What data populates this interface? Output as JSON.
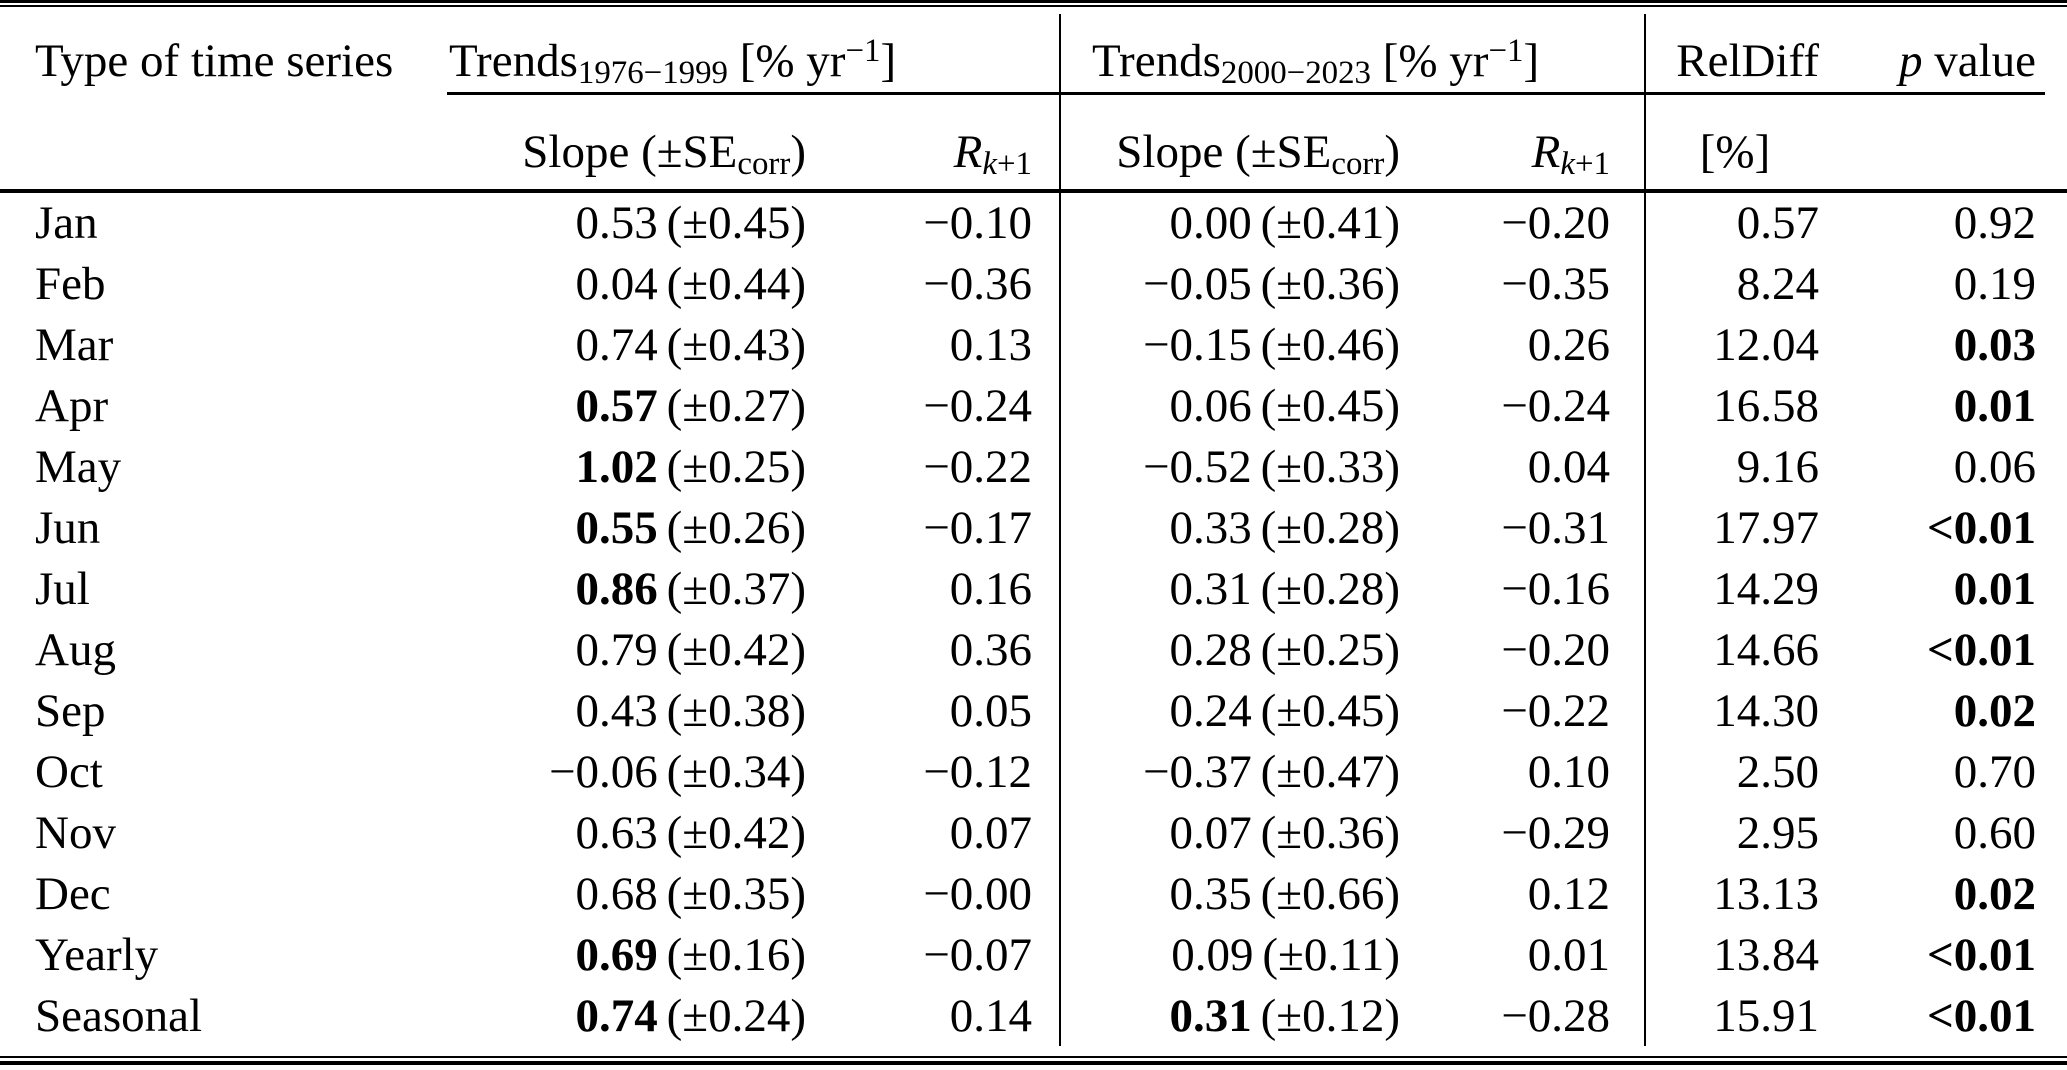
{
  "colors": {
    "text": "#000000",
    "background": "#ffffff",
    "rule": "#000000"
  },
  "header": {
    "type_col": "Type of time series",
    "group1": {
      "name": "Trends",
      "range": "1976−1999",
      "unit_pre": " [% yr",
      "unit_sup": "−1",
      "unit_post": "]"
    },
    "group2": {
      "name": "Trends",
      "range": "2000−2023",
      "unit_pre": " [% yr",
      "unit_sup": "−1",
      "unit_post": "]"
    },
    "reldiff": "RelDiff",
    "reldiff_unit": "[%]",
    "p_italic": "p",
    "p_rest": " value",
    "slope_pre": "Slope (±SE",
    "slope_sub": "corr",
    "slope_post": ")",
    "r_base": "R",
    "r_sub_italic": "k",
    "r_sub_plain": "+1"
  },
  "rows": [
    {
      "label": "Jan",
      "s1": "0.53",
      "s1_bold": false,
      "se1": "(±0.45)",
      "r1": "−0.10",
      "s2": "0.00",
      "s2_bold": false,
      "se2": "(±0.41)",
      "r2": "−0.20",
      "reldiff": "0.57",
      "p": "0.92",
      "p_bold": false
    },
    {
      "label": "Feb",
      "s1": "0.04",
      "s1_bold": false,
      "se1": "(±0.44)",
      "r1": "−0.36",
      "s2": "−0.05",
      "s2_bold": false,
      "se2": "(±0.36)",
      "r2": "−0.35",
      "reldiff": "8.24",
      "p": "0.19",
      "p_bold": false
    },
    {
      "label": "Mar",
      "s1": "0.74",
      "s1_bold": false,
      "se1": "(±0.43)",
      "r1": "0.13",
      "s2": "−0.15",
      "s2_bold": false,
      "se2": "(±0.46)",
      "r2": "0.26",
      "reldiff": "12.04",
      "p": "0.03",
      "p_bold": true
    },
    {
      "label": "Apr",
      "s1": "0.57",
      "s1_bold": true,
      "se1": "(±0.27)",
      "r1": "−0.24",
      "s2": "0.06",
      "s2_bold": false,
      "se2": "(±0.45)",
      "r2": "−0.24",
      "reldiff": "16.58",
      "p": "0.01",
      "p_bold": true
    },
    {
      "label": "May",
      "s1": "1.02",
      "s1_bold": true,
      "se1": "(±0.25)",
      "r1": "−0.22",
      "s2": "−0.52",
      "s2_bold": false,
      "se2": "(±0.33)",
      "r2": "0.04",
      "reldiff": "9.16",
      "p": "0.06",
      "p_bold": false
    },
    {
      "label": "Jun",
      "s1": "0.55",
      "s1_bold": true,
      "se1": "(±0.26)",
      "r1": "−0.17",
      "s2": "0.33",
      "s2_bold": false,
      "se2": "(±0.28)",
      "r2": "−0.31",
      "reldiff": "17.97",
      "p": "<0.01",
      "p_bold": true
    },
    {
      "label": "Jul",
      "s1": "0.86",
      "s1_bold": true,
      "se1": "(±0.37)",
      "r1": "0.16",
      "s2": "0.31",
      "s2_bold": false,
      "se2": "(±0.28)",
      "r2": "−0.16",
      "reldiff": "14.29",
      "p": "0.01",
      "p_bold": true
    },
    {
      "label": "Aug",
      "s1": "0.79",
      "s1_bold": false,
      "se1": "(±0.42)",
      "r1": "0.36",
      "s2": "0.28",
      "s2_bold": false,
      "se2": "(±0.25)",
      "r2": "−0.20",
      "reldiff": "14.66",
      "p": "<0.01",
      "p_bold": true
    },
    {
      "label": "Sep",
      "s1": "0.43",
      "s1_bold": false,
      "se1": "(±0.38)",
      "r1": "0.05",
      "s2": "0.24",
      "s2_bold": false,
      "se2": "(±0.45)",
      "r2": "−0.22",
      "reldiff": "14.30",
      "p": "0.02",
      "p_bold": true
    },
    {
      "label": "Oct",
      "s1": "−0.06",
      "s1_bold": false,
      "se1": "(±0.34)",
      "r1": "−0.12",
      "s2": "−0.37",
      "s2_bold": false,
      "se2": "(±0.47)",
      "r2": "0.10",
      "reldiff": "2.50",
      "p": "0.70",
      "p_bold": false
    },
    {
      "label": "Nov",
      "s1": "0.63",
      "s1_bold": false,
      "se1": "(±0.42)",
      "r1": "0.07",
      "s2": "0.07",
      "s2_bold": false,
      "se2": "(±0.36)",
      "r2": "−0.29",
      "reldiff": "2.95",
      "p": "0.60",
      "p_bold": false
    },
    {
      "label": "Dec",
      "s1": "0.68",
      "s1_bold": false,
      "se1": "(±0.35)",
      "r1": "−0.00",
      "s2": "0.35",
      "s2_bold": false,
      "se2": "(±0.66)",
      "r2": "0.12",
      "reldiff": "13.13",
      "p": "0.02",
      "p_bold": true
    },
    {
      "label": "Yearly",
      "s1": "0.69",
      "s1_bold": true,
      "se1": "(±0.16)",
      "r1": "−0.07",
      "s2": "0.09",
      "s2_bold": false,
      "se2": "(±0.11)",
      "r2": "0.01",
      "reldiff": "13.84",
      "p": "<0.01",
      "p_bold": true
    },
    {
      "label": "Seasonal",
      "s1": "0.74",
      "s1_bold": true,
      "se1": "(±0.24)",
      "r1": "0.14",
      "s2": "0.31",
      "s2_bold": true,
      "se2": "(±0.12)",
      "r2": "−0.28",
      "reldiff": "15.91",
      "p": "<0.01",
      "p_bold": true
    }
  ]
}
